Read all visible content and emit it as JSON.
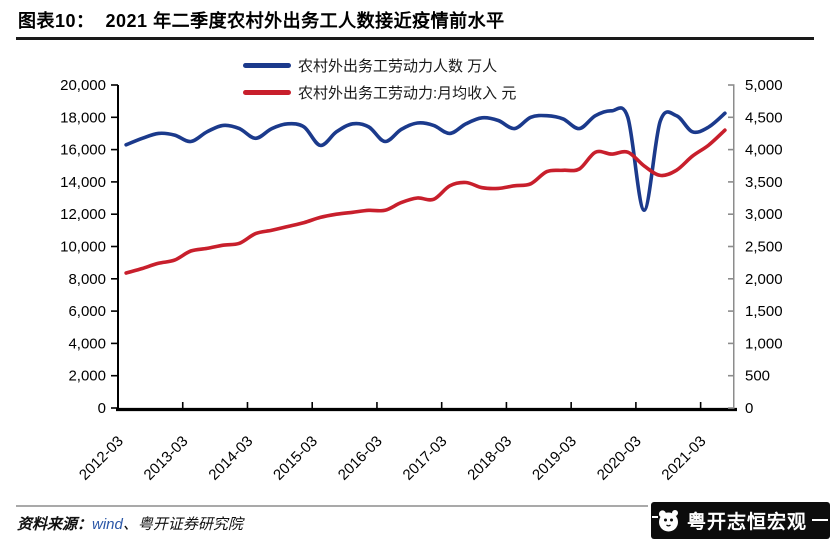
{
  "title": "图表10：  2021 年二季度农村外出务工人数接近疫情前水平",
  "chart_data": {
    "type": "line",
    "title": "2021 年二季度农村外出务工人数接近疫情前水平",
    "grid": false,
    "legend_position": "top-center",
    "x": [
      "2012-03",
      "2012-06",
      "2012-09",
      "2012-12",
      "2013-03",
      "2013-06",
      "2013-09",
      "2013-12",
      "2014-03",
      "2014-06",
      "2014-09",
      "2014-12",
      "2015-03",
      "2015-06",
      "2015-09",
      "2015-12",
      "2016-03",
      "2016-06",
      "2016-09",
      "2016-12",
      "2017-03",
      "2017-06",
      "2017-09",
      "2017-12",
      "2018-03",
      "2018-06",
      "2018-09",
      "2018-12",
      "2019-03",
      "2019-06",
      "2019-09",
      "2019-12",
      "2020-03",
      "2020-06",
      "2020-09",
      "2020-12",
      "2021-03",
      "2021-06"
    ],
    "x_tick_labels": [
      "2012-03",
      "2013-03",
      "2014-03",
      "2015-03",
      "2016-03",
      "2017-03",
      "2018-03",
      "2019-03",
      "2020-03",
      "2021-03"
    ],
    "series": [
      {
        "name": "农村外出务工劳动力人数 万人",
        "axis": "left",
        "color": "#1b3a8c",
        "values": [
          16300,
          16700,
          17000,
          16900,
          16500,
          17100,
          17500,
          17300,
          16700,
          17300,
          17600,
          17400,
          16260,
          17100,
          17600,
          17400,
          16500,
          17250,
          17650,
          17500,
          17000,
          17600,
          17970,
          17800,
          17300,
          18000,
          18100,
          17900,
          17300,
          18100,
          18400,
          18000,
          12250,
          17750,
          18100,
          17100,
          17400,
          18250
        ]
      },
      {
        "name": "农村外出务工劳动力:月均收入 元",
        "axis": "right",
        "color": "#c81f2c",
        "values": [
          2090,
          2160,
          2240,
          2290,
          2430,
          2470,
          2520,
          2550,
          2700,
          2750,
          2810,
          2870,
          2950,
          3000,
          3030,
          3060,
          3060,
          3180,
          3250,
          3230,
          3440,
          3490,
          3410,
          3400,
          3440,
          3470,
          3660,
          3680,
          3700,
          3960,
          3930,
          3960,
          3750,
          3600,
          3680,
          3900,
          4070,
          4300
        ]
      }
    ],
    "left_axis": {
      "min": 0,
      "max": 20000,
      "step": 2000,
      "tick_labels": [
        "20,000",
        "18,000",
        "16,000",
        "14,000",
        "12,000",
        "10,000",
        "8,000",
        "6,000",
        "4,000",
        "2,000",
        "0"
      ]
    },
    "right_axis": {
      "min": 0,
      "max": 5000,
      "step": 500,
      "tick_labels": [
        "5,000",
        "4,500",
        "4,000",
        "3,500",
        "3,000",
        "2,500",
        "2,000",
        "1,500",
        "1,000",
        "500",
        "0"
      ]
    }
  },
  "footer": {
    "source_label": "资料来源：",
    "source_wind": "wind",
    "source_rest": "、粤开证券研究院",
    "brand": "粤开志恒宏观"
  },
  "colors": {
    "workers_line": "#1b3a8c",
    "income_line": "#c81f2c",
    "right_axis": "#8c8c8c",
    "banner_bg": "#0c0c0c"
  }
}
